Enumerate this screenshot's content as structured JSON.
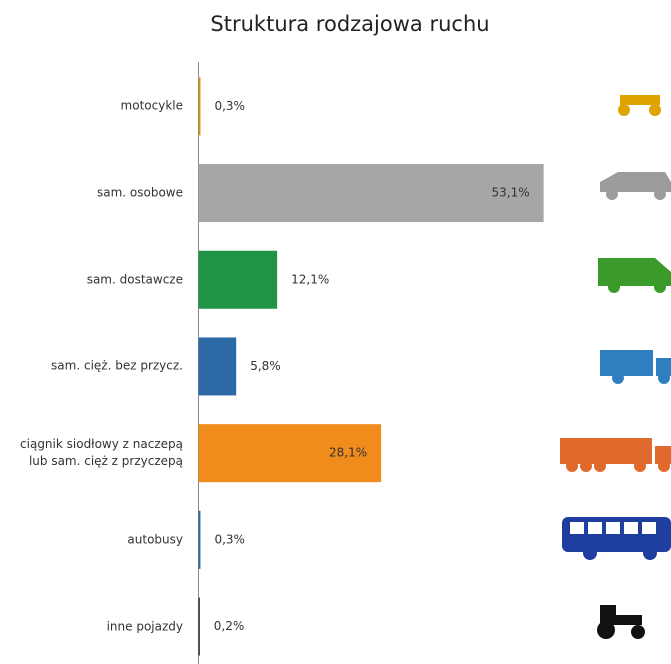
{
  "chart_data": {
    "type": "bar",
    "orientation": "horizontal",
    "title": "Struktura rodzajowa ruchu",
    "categories": [
      "motocykle",
      "sam. osobowe",
      "sam. dostawcze",
      "sam. cięż. bez przycz.",
      "ciągnik siodłowy z naczepą\nlub sam. cięż z przyczepą",
      "autobusy",
      "inne pojazdy"
    ],
    "values": [
      0.3,
      53.1,
      12.1,
      5.8,
      28.1,
      0.3,
      0.2
    ],
    "value_labels": [
      "0,3%",
      "53,1%",
      "12,1%",
      "5,8%",
      "28,1%",
      "0,3%",
      "0,2%"
    ],
    "colors": [
      "#c9961a",
      "#a6a6a6",
      "#1f9444",
      "#2e6aa6",
      "#ef8c1c",
      "#2e6aa6",
      "#222222"
    ]
  }
}
